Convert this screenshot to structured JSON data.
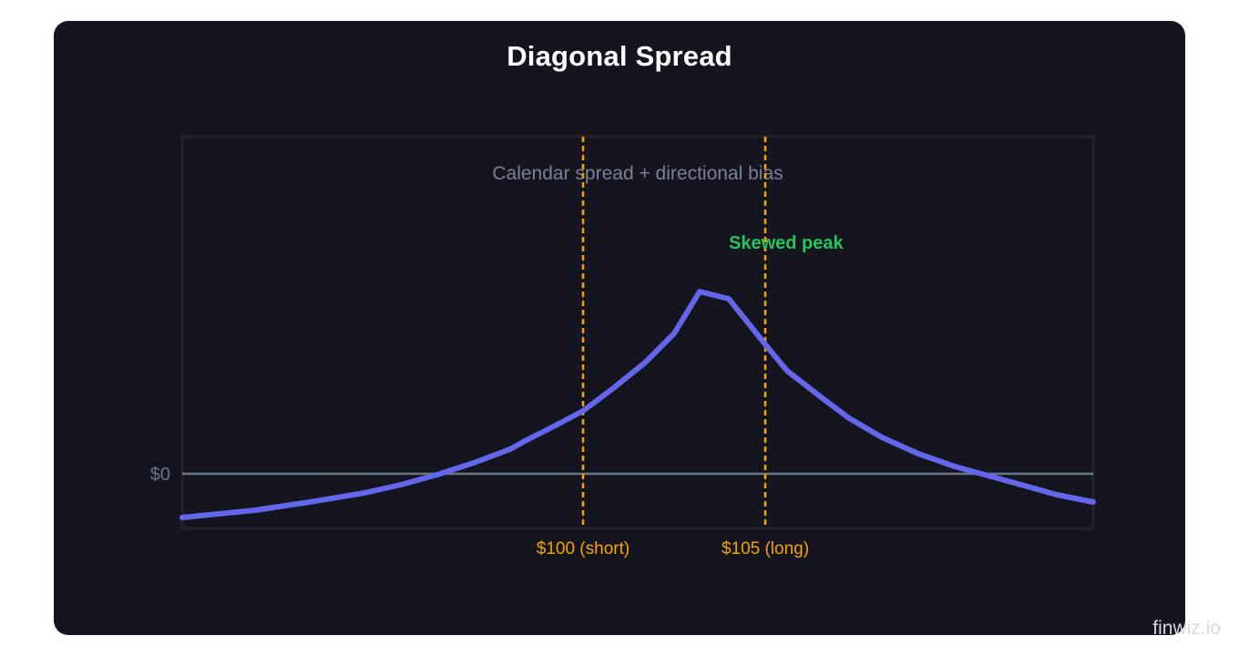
{
  "title": "Diagonal Spread",
  "watermark": "finwiz.io",
  "chart_data": {
    "type": "line",
    "title": "Diagonal Spread",
    "subtitle": "Calendar spread + directional bias",
    "xlabel": "",
    "ylabel": "",
    "xlim": [
      89,
      114
    ],
    "ylim": [
      -0.6,
      3.7
    ],
    "grid": false,
    "legend": "none",
    "y_ticks": [
      {
        "value": 0,
        "label": "$0"
      }
    ],
    "series": [
      {
        "color": "#6466ec",
        "x": [
          89,
          91,
          92.5,
          94,
          95,
          96,
          97,
          98,
          98.5,
          99,
          100,
          100.8,
          101.7,
          102.5,
          103.2,
          104,
          104.5,
          105,
          105.6,
          106.5,
          107.3,
          108.2,
          109.2,
          110.2,
          111.2,
          112.2,
          113,
          114
        ],
        "y": [
          -0.48,
          -0.4,
          -0.31,
          -0.21,
          -0.12,
          -0.01,
          0.12,
          0.27,
          0.38,
          0.48,
          0.69,
          0.93,
          1.22,
          1.54,
          2.0,
          1.92,
          1.67,
          1.42,
          1.13,
          0.85,
          0.61,
          0.4,
          0.22,
          0.08,
          -0.03,
          -0.14,
          -0.23,
          -0.31
        ]
      }
    ],
    "reference_lines": [
      {
        "x": 100,
        "label": "$100 (short)",
        "color": "#f5a300"
      },
      {
        "x": 105,
        "label": "$105 (long)",
        "color": "#f5a300"
      }
    ],
    "annotations": [
      {
        "text": "Skewed peak",
        "x": 104,
        "y": 2.47,
        "color": "#22c55e"
      }
    ]
  }
}
